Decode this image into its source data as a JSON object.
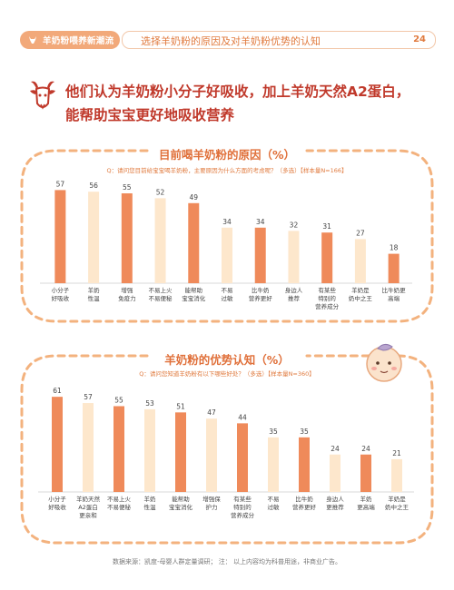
{
  "header": {
    "tag": "羊奶粉喂养新潮流",
    "subtitle": "选择羊奶粉的原因及对羊奶粉优势的认知",
    "page_number": "24",
    "tag_icon": "goat-icon"
  },
  "headline": {
    "line1": "他们认为羊奶粉小分子好吸收，加上羊奶天然A2蛋白，",
    "line2": "能帮助宝宝更好地吸收营养",
    "icon": "goat-head-icon"
  },
  "colors": {
    "accent": "#e0703a",
    "bar_dark": "#ef8a5a",
    "bar_light": "#fde7cc",
    "dash": "#f3b27e",
    "headline": "#c0392b"
  },
  "chart_data": [
    {
      "type": "bar",
      "title": "目前喝羊奶粉的原因（%）",
      "question": "Q：请问您目前给宝宝喝羊奶粉，主要原因为什么方面的考虑呢？（多选）【样本量N=166】",
      "categories": [
        "小分子\n好吸收",
        "羊奶\n性温",
        "增强\n免疫力",
        "不易上火\n不易便秘",
        "能帮助\n宝宝消化",
        "不易\n过敏",
        "比牛奶\n营养更好",
        "身边人\n推荐",
        "有某些\n特别的\n营养成分",
        "羊奶是\n奶中之王",
        "比牛奶更\n高端"
      ],
      "values": [
        57,
        56,
        55,
        52,
        49,
        34,
        34,
        32,
        31,
        27,
        18
      ],
      "highlight": [
        true,
        false,
        true,
        false,
        true,
        false,
        true,
        false,
        true,
        false,
        true
      ],
      "ylim": [
        0,
        60
      ]
    },
    {
      "type": "bar",
      "title": "羊奶粉的优势认知（%）",
      "question": "Q：请问您知道羊奶粉有以下哪些好处？（多选）【样本量N=360】",
      "categories": [
        "小分子\n好吸收",
        "羊奶天然\nA2蛋白\n更亲和",
        "不易上火\n不易便秘",
        "羊奶\n性温",
        "能帮助\n宝宝消化",
        "增强保\n护力",
        "有某些\n特别的\n营养成分",
        "不易\n过敏",
        "比牛奶\n营养更好",
        "身边人\n更推荐",
        "羊奶\n更高端",
        "羊奶是\n奶中之王"
      ],
      "values": [
        61,
        57,
        55,
        53,
        51,
        47,
        44,
        35,
        35,
        24,
        24,
        21
      ],
      "highlight": [
        true,
        false,
        true,
        false,
        true,
        false,
        true,
        false,
        true,
        false,
        true,
        false
      ],
      "ylim": [
        0,
        64
      ]
    }
  ],
  "footnote": "数据来源：凯度-母婴人群定量调研；  注：  以上内容均为科普用途，非商业广告。"
}
